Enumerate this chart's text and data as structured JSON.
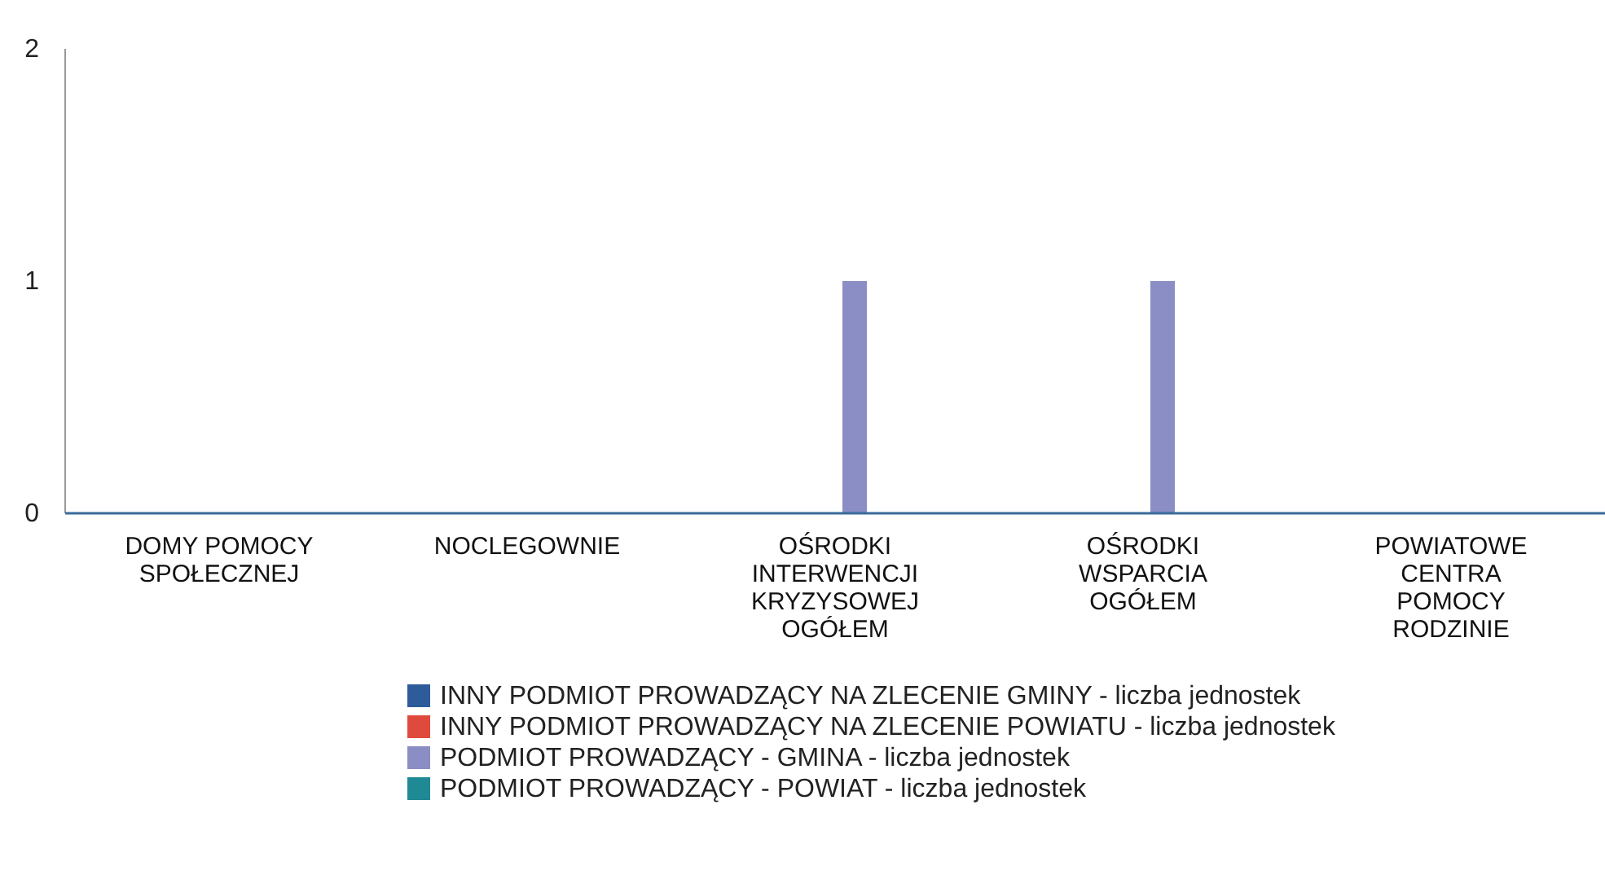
{
  "chart_data": {
    "type": "bar",
    "categories": [
      "DOMY POMOCY SPOŁECZNEJ",
      "NOCLEGOWNIE",
      "OŚRODKI INTERWENCJI KRYZYSOWEJ OGÓŁEM",
      "OŚRODKI WSPARCIA OGÓŁEM",
      "POWIATOWE CENTRA POMOCY RODZINIE"
    ],
    "series": [
      {
        "name": "INNY PODMIOT PROWADZĄCY NA ZLECENIE GMINY - liczba jednostek",
        "color": "#2e5c9a",
        "values": [
          0,
          0,
          0,
          0,
          0
        ]
      },
      {
        "name": "INNY PODMIOT PROWADZĄCY NA ZLECENIE POWIATU - liczba jednostek",
        "color": "#e04a3c",
        "values": [
          0,
          0,
          0,
          0,
          0
        ]
      },
      {
        "name": "PODMIOT PROWADZĄCY - GMINA - liczba jednostek",
        "color": "#8a8ec4",
        "values": [
          0,
          0,
          1,
          1,
          0
        ]
      },
      {
        "name": "PODMIOT PROWADZĄCY - POWIAT - liczba jednostek",
        "color": "#1f8a94",
        "values": [
          0,
          0,
          0,
          0,
          0
        ]
      }
    ],
    "ylim": [
      0,
      2
    ],
    "yticks": [
      0,
      1,
      2
    ],
    "grid": false,
    "legend": "bottom"
  }
}
